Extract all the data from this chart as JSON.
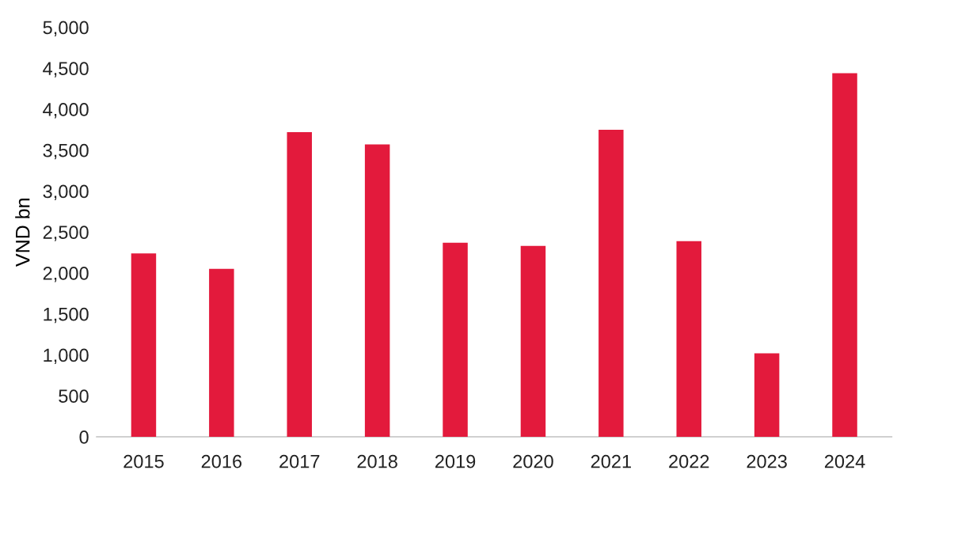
{
  "chart_data": {
    "type": "bar",
    "ylabel": "VND bn",
    "categories": [
      "2015",
      "2016",
      "2017",
      "2018",
      "2019",
      "2020",
      "2021",
      "2022",
      "2023",
      "2024"
    ],
    "values": [
      2240,
      2050,
      3720,
      3570,
      2370,
      2330,
      3750,
      2390,
      1020,
      4440
    ],
    "color": "#e31a3c",
    "ylim": [
      0,
      5000
    ],
    "yticks": [
      {
        "value": 0,
        "label": "0"
      },
      {
        "value": 500,
        "label": "500"
      },
      {
        "value": 1000,
        "label": "1,000"
      },
      {
        "value": 1500,
        "label": "1,500"
      },
      {
        "value": 2000,
        "label": "2,000"
      },
      {
        "value": 2500,
        "label": "2,500"
      },
      {
        "value": 3000,
        "label": "3,000"
      },
      {
        "value": 3500,
        "label": "3,500"
      },
      {
        "value": 4000,
        "label": "4,000"
      },
      {
        "value": 4500,
        "label": "4,500"
      },
      {
        "value": 5000,
        "label": "5,000"
      }
    ],
    "grid": false,
    "legend": false
  }
}
